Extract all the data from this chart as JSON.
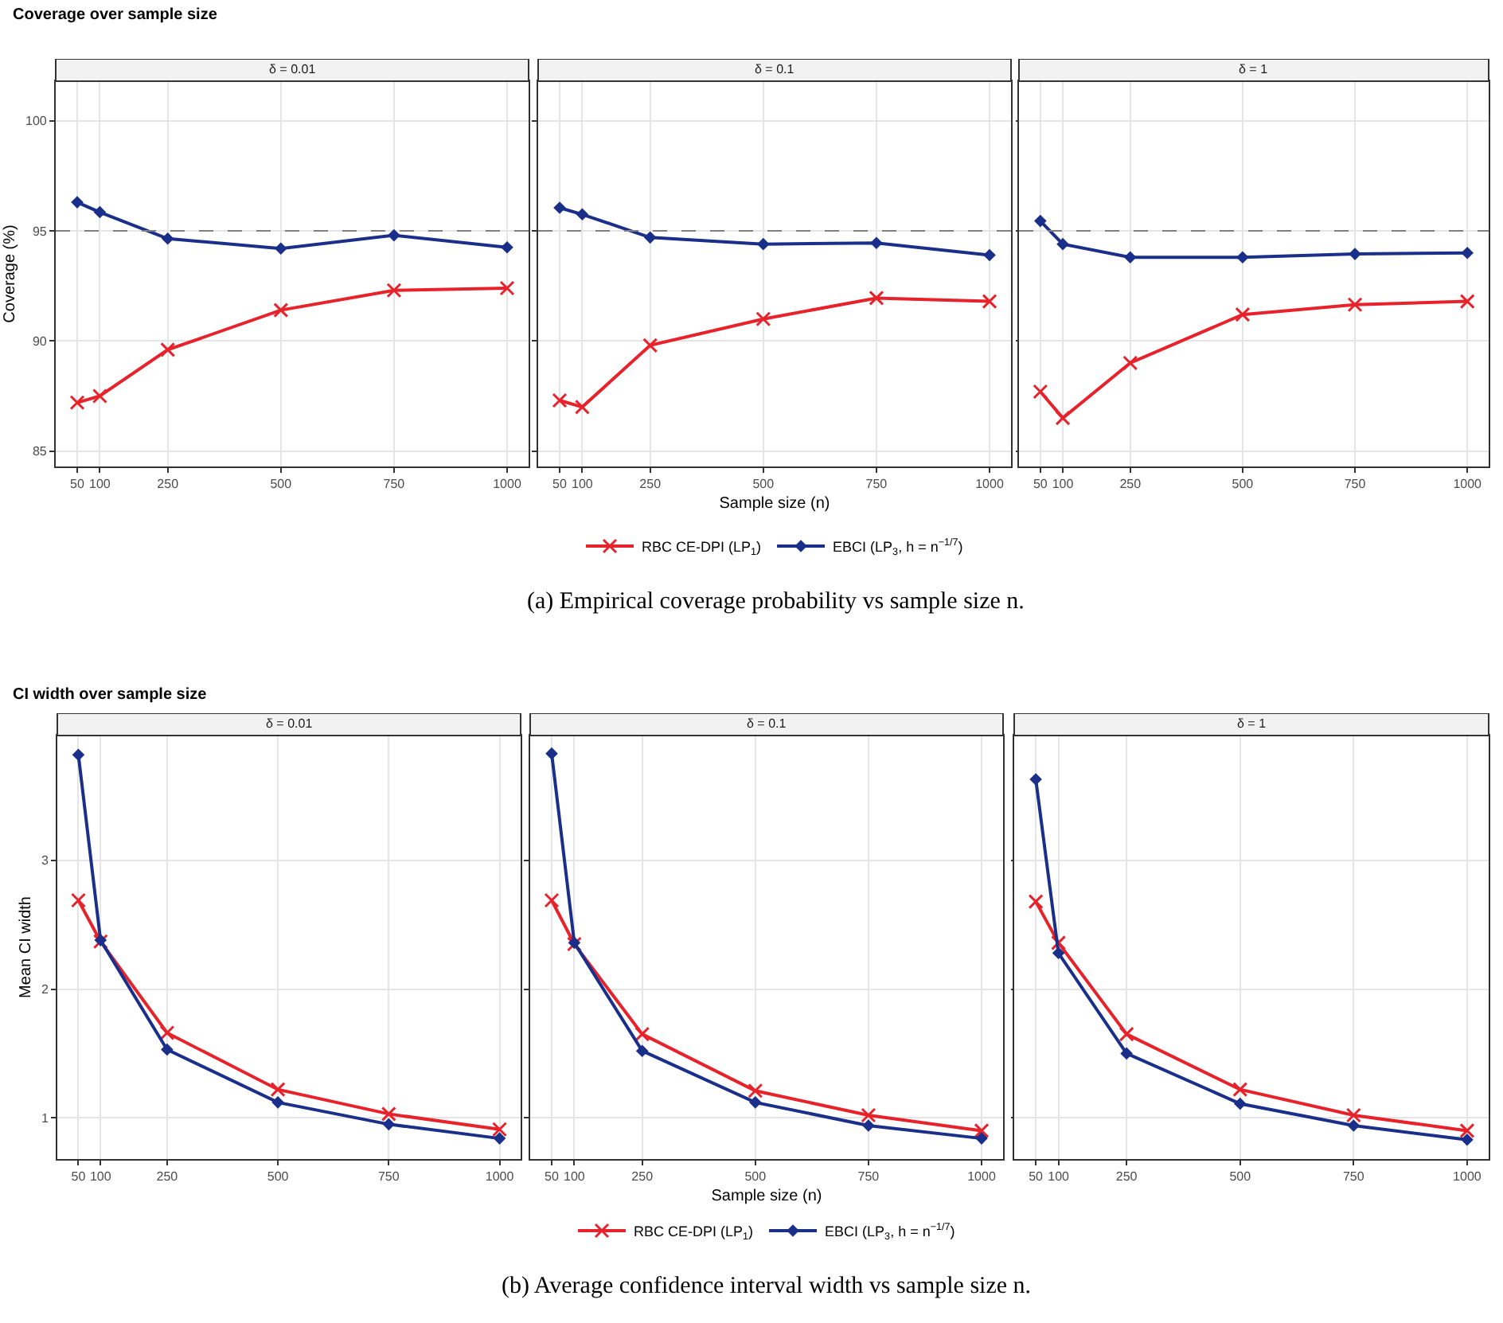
{
  "chart_data": [
    {
      "type": "line",
      "title": "Coverage over sample size",
      "subtitle": "δ = 0.01",
      "ylabel": "Coverage (%)",
      "x": [
        50,
        100,
        250,
        500,
        750,
        1000
      ],
      "xlim": [
        2.5,
        1047.5
      ],
      "xticks": [
        50,
        100,
        250,
        500,
        750,
        1000
      ],
      "ylim": [
        84.3,
        101.8
      ],
      "yticks": [
        85,
        90,
        95,
        100
      ],
      "grid": true,
      "legend": false,
      "ref_lines": [
        {
          "axis": "y",
          "value": 95,
          "color": "#808080",
          "line_style": "dashed"
        }
      ],
      "series": [
        {
          "color": "#e8222b",
          "marker": "cross",
          "values": [
            87.2,
            87.5,
            89.6,
            91.4,
            92.3,
            92.4
          ]
        },
        {
          "color": "#1a2f8a",
          "marker": "diamond",
          "values": [
            96.3,
            95.85,
            94.65,
            94.2,
            94.8,
            94.25
          ]
        }
      ]
    },
    {
      "type": "line",
      "subtitle": "δ = 0.1",
      "xlabel": "Sample size (n)",
      "x": [
        50,
        100,
        250,
        500,
        750,
        1000
      ],
      "xlim": [
        2.5,
        1047.5
      ],
      "xticks": [
        50,
        100,
        250,
        500,
        750,
        1000
      ],
      "ylim": [
        84.3,
        101.8
      ],
      "yticks": [
        85,
        90,
        95,
        100
      ],
      "grid": true,
      "tick_labels": "x",
      "legend": "bottom",
      "annotations": [
        "(a) Empirical coverage probability vs sample size n."
      ],
      "ref_lines": [
        {
          "axis": "y",
          "value": 95,
          "color": "#808080",
          "line_style": "dashed"
        }
      ],
      "series": [
        {
          "name": "RBC CE-DPI (LP$_{1}$)",
          "color": "#e8222b",
          "marker": "cross",
          "values": [
            87.3,
            87.0,
            89.8,
            91.0,
            91.95,
            91.8
          ]
        },
        {
          "name": "EBCI (LP$_{3}$, h = n$^{−1/7}$)",
          "color": "#1a2f8a",
          "marker": "diamond",
          "values": [
            96.05,
            95.75,
            94.7,
            94.4,
            94.45,
            93.9
          ]
        }
      ]
    },
    {
      "type": "line",
      "subtitle": "δ = 1",
      "x": [
        50,
        100,
        250,
        500,
        750,
        1000
      ],
      "xlim": [
        2.5,
        1047.5
      ],
      "xticks": [
        50,
        100,
        250,
        500,
        750,
        1000
      ],
      "ylim": [
        84.3,
        101.8
      ],
      "yticks": [
        85,
        90,
        95,
        100
      ],
      "grid": true,
      "tick_labels": "x",
      "legend": false,
      "ref_lines": [
        {
          "axis": "y",
          "value": 95,
          "color": "#808080",
          "line_style": "dashed"
        }
      ],
      "series": [
        {
          "color": "#e8222b",
          "marker": "cross",
          "values": [
            87.7,
            86.5,
            89.0,
            91.2,
            91.65,
            91.8
          ]
        },
        {
          "color": "#1a2f8a",
          "marker": "diamond",
          "values": [
            95.45,
            94.4,
            93.8,
            93.8,
            93.95,
            94.0
          ]
        }
      ]
    },
    {
      "type": "line",
      "title": "CI width over sample size",
      "subtitle": "δ = 0.01",
      "ylabel": "Mean CI width",
      "x": [
        50,
        100,
        250,
        500,
        750,
        1000
      ],
      "xlim": [
        2.5,
        1047.5
      ],
      "xticks": [
        50,
        100,
        250,
        500,
        750,
        1000
      ],
      "ylim": [
        0.68,
        3.97
      ],
      "yticks": [
        1,
        2,
        3
      ],
      "grid": true,
      "legend": false,
      "series": [
        {
          "color": "#e8222b",
          "marker": "cross",
          "values": [
            2.69,
            2.37,
            1.66,
            1.22,
            1.03,
            0.91
          ]
        },
        {
          "color": "#1a2f8a",
          "marker": "diamond",
          "values": [
            3.82,
            2.38,
            1.53,
            1.12,
            0.95,
            0.84
          ]
        }
      ]
    },
    {
      "type": "line",
      "subtitle": "δ = 0.1",
      "xlabel": "Sample size (n)",
      "x": [
        50,
        100,
        250,
        500,
        750,
        1000
      ],
      "xlim": [
        2.5,
        1047.5
      ],
      "xticks": [
        50,
        100,
        250,
        500,
        750,
        1000
      ],
      "ylim": [
        0.68,
        3.97
      ],
      "yticks": [
        1,
        2,
        3
      ],
      "grid": true,
      "tick_labels": "x",
      "legend": "bottom",
      "annotations": [
        "(b) Average confidence interval width vs sample size n."
      ],
      "series": [
        {
          "name": "RBC CE-DPI (LP$_{1}$)",
          "color": "#e8222b",
          "marker": "cross",
          "values": [
            2.69,
            2.35,
            1.65,
            1.21,
            1.02,
            0.9
          ]
        },
        {
          "name": "EBCI (LP$_{3}$, h = n$^{−1/7}$)",
          "color": "#1a2f8a",
          "marker": "diamond",
          "values": [
            3.83,
            2.36,
            1.52,
            1.12,
            0.94,
            0.84
          ]
        }
      ]
    },
    {
      "type": "line",
      "subtitle": "δ = 1",
      "x": [
        50,
        100,
        250,
        500,
        750,
        1000
      ],
      "xlim": [
        2.5,
        1047.5
      ],
      "xticks": [
        50,
        100,
        250,
        500,
        750,
        1000
      ],
      "ylim": [
        0.68,
        3.97
      ],
      "yticks": [
        1,
        2,
        3
      ],
      "grid": true,
      "tick_labels": "x",
      "legend": false,
      "series": [
        {
          "color": "#e8222b",
          "marker": "cross",
          "values": [
            2.68,
            2.36,
            1.65,
            1.22,
            1.02,
            0.9
          ]
        },
        {
          "color": "#1a2f8a",
          "marker": "diamond",
          "values": [
            3.63,
            2.28,
            1.5,
            1.11,
            0.94,
            0.83
          ]
        }
      ]
    }
  ]
}
